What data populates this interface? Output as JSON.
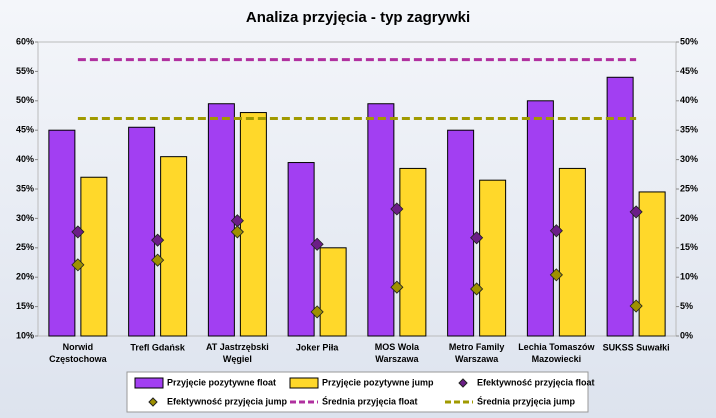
{
  "chart_data": {
    "type": "bar",
    "title": "Analiza przyjęcia - typ zagrywki",
    "categories": [
      "Norwid Częstochowa",
      "Trefl Gdańsk",
      "AT Jastrzębski Węgiel",
      "Joker Piła",
      "MOS Wola Warszawa",
      "Metro Family Warszawa",
      "Lechia Tomaszów Mazowiecki",
      "SUKSS Suwałki"
    ],
    "series": [
      {
        "name": "Przyjęcie pozytywne float",
        "color": "#a23ff2",
        "kind": "bar",
        "values": [
          45,
          45.5,
          49.5,
          39.5,
          49.5,
          45,
          50,
          54
        ]
      },
      {
        "name": "Przyjęcie pozytywne jump",
        "color": "#ffd82a",
        "kind": "bar",
        "values": [
          37,
          40.5,
          48,
          25,
          38.5,
          36.5,
          38.5,
          34.5
        ]
      },
      {
        "name": "Efektywność przyjęcia float",
        "color": "#6b1e86",
        "kind": "diamond",
        "axis": "y2",
        "values": [
          17.7,
          16.3,
          19.6,
          15.6,
          21.6,
          16.7,
          17.9,
          21.1
        ]
      },
      {
        "name": "Efektywność przyjęcia jump",
        "color": "#9e9000",
        "kind": "diamond",
        "axis": "y2",
        "values": [
          12.1,
          12.9,
          17.7,
          4.1,
          8.3,
          8.0,
          10.4,
          5.1
        ]
      },
      {
        "name": "Średnia przyjęcia float",
        "color": "#b0309f",
        "kind": "dash",
        "axis": "y2",
        "values": [
          47,
          47,
          47,
          47,
          47,
          47,
          47,
          47
        ]
      },
      {
        "name": "Średnia przyjęcia jump",
        "color": "#a09a00",
        "kind": "dash",
        "axis": "y2",
        "values": [
          37,
          37,
          37,
          37,
          37,
          37,
          37,
          37
        ]
      }
    ],
    "ylim": [
      10,
      60
    ],
    "yticks": [
      {
        "value": 10,
        "label": "10%"
      },
      {
        "value": 15,
        "label": "15%"
      },
      {
        "value": 20,
        "label": "20%"
      },
      {
        "value": 25,
        "label": "25%"
      },
      {
        "value": 30,
        "label": "30%"
      },
      {
        "value": 35,
        "label": "35%"
      },
      {
        "value": 40,
        "label": "40%"
      },
      {
        "value": 45,
        "label": "45%"
      },
      {
        "value": 50,
        "label": "50%"
      },
      {
        "value": 55,
        "label": "55%"
      },
      {
        "value": 60,
        "label": "60%"
      }
    ],
    "y2lim": [
      0,
      50
    ],
    "y2ticks": [
      {
        "value": 0,
        "label": "0%"
      },
      {
        "value": 5,
        "label": "5%"
      },
      {
        "value": 10,
        "label": "10%"
      },
      {
        "value": 15,
        "label": "15%"
      },
      {
        "value": 20,
        "label": "20%"
      },
      {
        "value": 25,
        "label": "25%"
      },
      {
        "value": 30,
        "label": "30%"
      },
      {
        "value": 35,
        "label": "35%"
      },
      {
        "value": 40,
        "label": "40%"
      },
      {
        "value": 45,
        "label": "45%"
      },
      {
        "value": 50,
        "label": "50%"
      }
    ],
    "legend": "bottom"
  }
}
